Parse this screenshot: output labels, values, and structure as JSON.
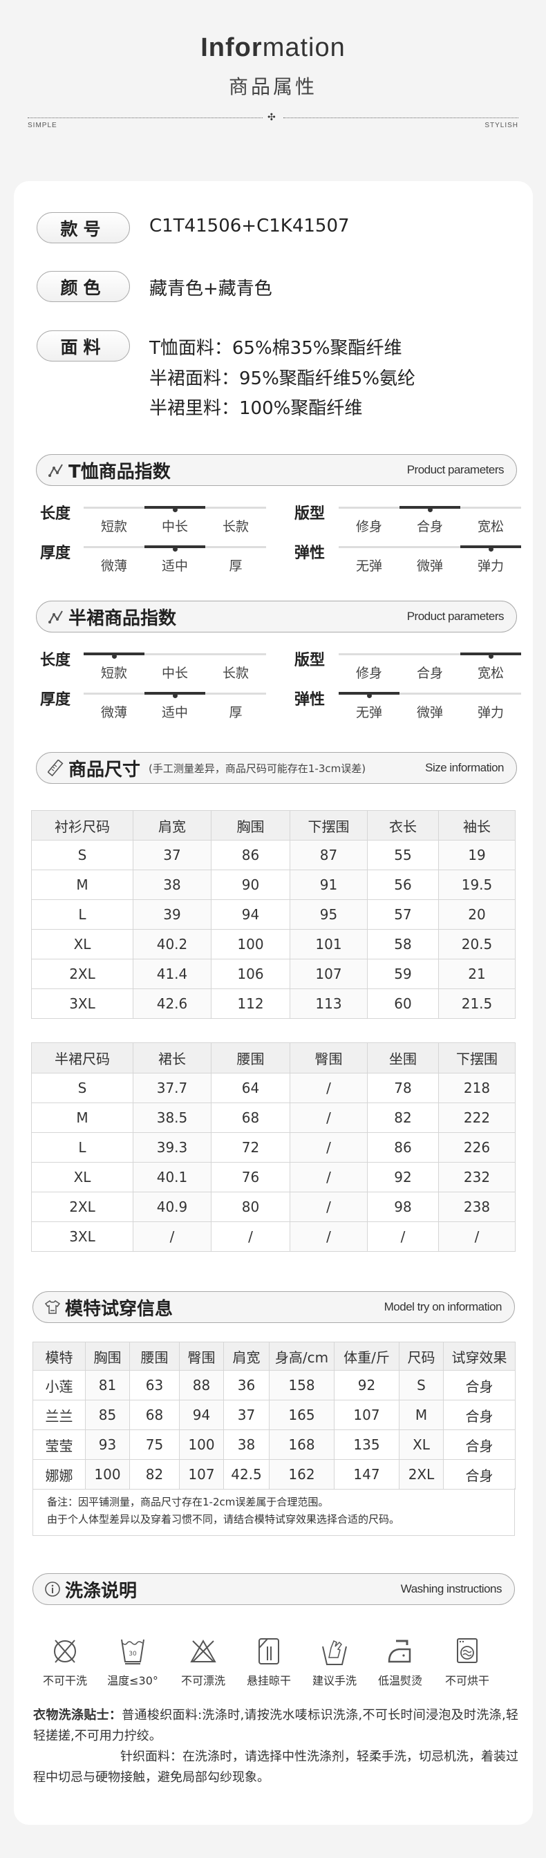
{
  "header": {
    "title_en_bold": "Infor",
    "title_en_rest": "mation",
    "title_cn": "商品属性",
    "left_tag": "SIMPLE",
    "right_tag": "STYLISH"
  },
  "basics": [
    {
      "label": "款号",
      "lines": [
        "C1T41506+C1K41507"
      ]
    },
    {
      "label": "颜色",
      "lines": [
        "藏青色+藏青色"
      ]
    },
    {
      "label": "面料",
      "lines": [
        "T恤面料：65%棉35%聚酯纤维",
        "半裙面料：95%聚酯纤维5%氨纶",
        "半裙里料：100%聚酯纤维"
      ]
    }
  ],
  "tshirt_params": {
    "title": "T恤商品指数",
    "title_en": "Product parameters",
    "rows": [
      {
        "label": "长度",
        "options": [
          "短款",
          "中长",
          "长款"
        ],
        "selected": 1
      },
      {
        "label": "版型",
        "options": [
          "修身",
          "合身",
          "宽松"
        ],
        "selected": 1
      },
      {
        "label": "厚度",
        "options": [
          "微薄",
          "适中",
          "厚"
        ],
        "selected": 1
      },
      {
        "label": "弹性",
        "options": [
          "无弹",
          "微弹",
          "弹力"
        ],
        "selected": 2
      }
    ]
  },
  "skirt_params": {
    "title": "半裙商品指数",
    "title_en": "Product parameters",
    "rows": [
      {
        "label": "长度",
        "options": [
          "短款",
          "中长",
          "长款"
        ],
        "selected": 0
      },
      {
        "label": "版型",
        "options": [
          "修身",
          "合身",
          "宽松"
        ],
        "selected": 2
      },
      {
        "label": "厚度",
        "options": [
          "微薄",
          "适中",
          "厚"
        ],
        "selected": 1
      },
      {
        "label": "弹性",
        "options": [
          "无弹",
          "微弹",
          "弹力"
        ],
        "selected": 0
      }
    ]
  },
  "size": {
    "title": "商品尺寸",
    "note": "(手工测量差异，商品尺码可能存在1-3cm误差)",
    "title_en": "Size information",
    "shirt_table": {
      "headers": [
        "衬衫尺码",
        "肩宽",
        "胸围",
        "下摆围",
        "衣长",
        "袖长"
      ],
      "rows": [
        [
          "S",
          "37",
          "86",
          "87",
          "55",
          "19"
        ],
        [
          "M",
          "38",
          "90",
          "91",
          "56",
          "19.5"
        ],
        [
          "L",
          "39",
          "94",
          "95",
          "57",
          "20"
        ],
        [
          "XL",
          "40.2",
          "100",
          "101",
          "58",
          "20.5"
        ],
        [
          "2XL",
          "41.4",
          "106",
          "107",
          "59",
          "21"
        ],
        [
          "3XL",
          "42.6",
          "112",
          "113",
          "60",
          "21.5"
        ]
      ]
    },
    "skirt_table": {
      "headers": [
        "半裙尺码",
        "裙长",
        "腰围",
        "臀围",
        "坐围",
        "下摆围"
      ],
      "rows": [
        [
          "S",
          "37.7",
          "64",
          "/",
          "78",
          "218"
        ],
        [
          "M",
          "38.5",
          "68",
          "/",
          "82",
          "222"
        ],
        [
          "L",
          "39.3",
          "72",
          "/",
          "86",
          "226"
        ],
        [
          "XL",
          "40.1",
          "76",
          "/",
          "92",
          "232"
        ],
        [
          "2XL",
          "40.9",
          "80",
          "/",
          "98",
          "238"
        ],
        [
          "3XL",
          "/",
          "/",
          "/",
          "/",
          "/"
        ]
      ]
    }
  },
  "model": {
    "title": "模特试穿信息",
    "title_en": "Model try on information",
    "headers": [
      "模特",
      "胸围",
      "腰围",
      "臀围",
      "肩宽",
      "身高/cm",
      "体重/斤",
      "尺码",
      "试穿效果"
    ],
    "rows": [
      [
        "小莲",
        "81",
        "63",
        "88",
        "36",
        "158",
        "92",
        "S",
        "合身"
      ],
      [
        "兰兰",
        "85",
        "68",
        "94",
        "37",
        "165",
        "107",
        "M",
        "合身"
      ],
      [
        "莹莹",
        "93",
        "75",
        "100",
        "38",
        "168",
        "135",
        "XL",
        "合身"
      ],
      [
        "娜娜",
        "100",
        "82",
        "107",
        "42.5",
        "162",
        "147",
        "2XL",
        "合身"
      ]
    ],
    "notes": [
      "备注：因平铺测量，商品尺寸存在1-2cm误差属于合理范围。",
      "由于个人体型差异以及穿着习惯不同，请结合模特试穿效果选择合适的尺码。"
    ]
  },
  "washing": {
    "title": "洗涤说明",
    "title_en": "Washing instructions",
    "icons": [
      {
        "icon": "no-dry-clean-icon",
        "label": "不可干洗"
      },
      {
        "icon": "wash-30-icon",
        "label": "温度≤30°"
      },
      {
        "icon": "no-bleach-icon",
        "label": "不可漂洗"
      },
      {
        "icon": "hang-dry-icon",
        "label": "悬挂晾干"
      },
      {
        "icon": "hand-wash-icon",
        "label": "建议手洗"
      },
      {
        "icon": "low-iron-icon",
        "label": "低温熨烫"
      },
      {
        "icon": "no-tumble-dry-icon",
        "label": "不可烘干"
      }
    ],
    "tips_label": "衣物洗涤贴士：",
    "tips_woven": "普通梭织面料:洗涤时,请按洗水唛标识洗涤,不可长时间浸泡及时洗涤,轻轻搓搓,不可用力拧绞。",
    "tips_knit": "针织面料：在洗涤时，请选择中性洗涤剂，轻柔手洗，切忌机洗，着装过程中切忌与硬物接触，避免局部勾纱现象。"
  }
}
